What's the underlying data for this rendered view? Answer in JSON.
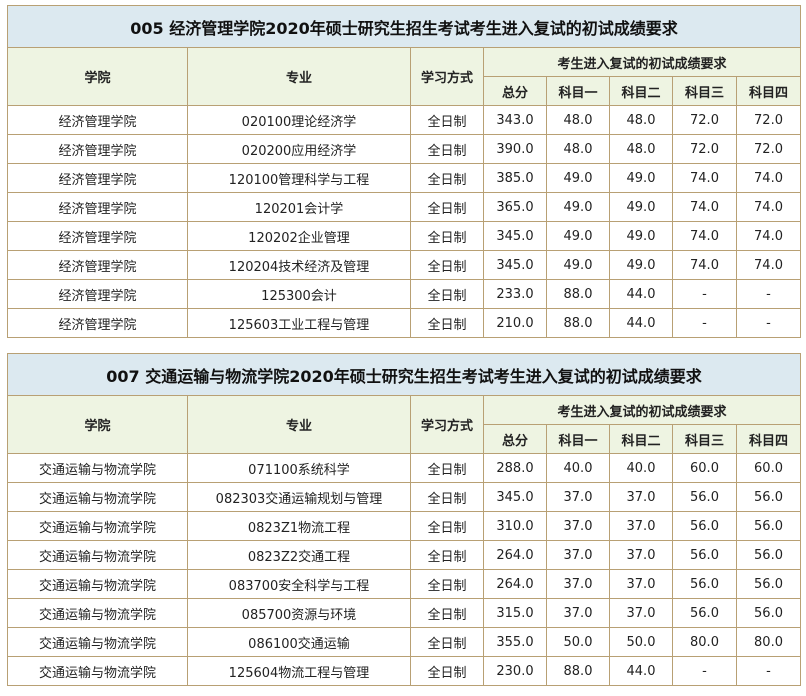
{
  "headers": {
    "college": "学院",
    "major": "专业",
    "mode": "学习方式",
    "req": "考生进入复试的初试成绩要求",
    "total": "总分",
    "s1": "科目一",
    "s2": "科目二",
    "s3": "科目三",
    "s4": "科目四"
  },
  "tables": [
    {
      "title": "005 经济管理学院2020年硕士研究生招生考试考生进入复试的初试成绩要求",
      "rows": [
        [
          "经济管理学院",
          "020100理论经济学",
          "全日制",
          "343.0",
          "48.0",
          "48.0",
          "72.0",
          "72.0"
        ],
        [
          "经济管理学院",
          "020200应用经济学",
          "全日制",
          "390.0",
          "48.0",
          "48.0",
          "72.0",
          "72.0"
        ],
        [
          "经济管理学院",
          "120100管理科学与工程",
          "全日制",
          "385.0",
          "49.0",
          "49.0",
          "74.0",
          "74.0"
        ],
        [
          "经济管理学院",
          "120201会计学",
          "全日制",
          "365.0",
          "49.0",
          "49.0",
          "74.0",
          "74.0"
        ],
        [
          "经济管理学院",
          "120202企业管理",
          "全日制",
          "345.0",
          "49.0",
          "49.0",
          "74.0",
          "74.0"
        ],
        [
          "经济管理学院",
          "120204技术经济及管理",
          "全日制",
          "345.0",
          "49.0",
          "49.0",
          "74.0",
          "74.0"
        ],
        [
          "经济管理学院",
          "125300会计",
          "全日制",
          "233.0",
          "88.0",
          "44.0",
          "-",
          "-"
        ],
        [
          "经济管理学院",
          "125603工业工程与管理",
          "全日制",
          "210.0",
          "88.0",
          "44.0",
          "-",
          "-"
        ]
      ]
    },
    {
      "title": "007 交通运输与物流学院2020年硕士研究生招生考试考生进入复试的初试成绩要求",
      "rows": [
        [
          "交通运输与物流学院",
          "071100系统科学",
          "全日制",
          "288.0",
          "40.0",
          "40.0",
          "60.0",
          "60.0"
        ],
        [
          "交通运输与物流学院",
          "082303交通运输规划与管理",
          "全日制",
          "345.0",
          "37.0",
          "37.0",
          "56.0",
          "56.0"
        ],
        [
          "交通运输与物流学院",
          "0823Z1物流工程",
          "全日制",
          "310.0",
          "37.0",
          "37.0",
          "56.0",
          "56.0"
        ],
        [
          "交通运输与物流学院",
          "0823Z2交通工程",
          "全日制",
          "264.0",
          "37.0",
          "37.0",
          "56.0",
          "56.0"
        ],
        [
          "交通运输与物流学院",
          "083700安全科学与工程",
          "全日制",
          "264.0",
          "37.0",
          "37.0",
          "56.0",
          "56.0"
        ],
        [
          "交通运输与物流学院",
          "085700资源与环境",
          "全日制",
          "315.0",
          "37.0",
          "37.0",
          "56.0",
          "56.0"
        ],
        [
          "交通运输与物流学院",
          "086100交通运输",
          "全日制",
          "355.0",
          "50.0",
          "50.0",
          "80.0",
          "80.0"
        ],
        [
          "交通运输与物流学院",
          "125604物流工程与管理",
          "全日制",
          "230.0",
          "88.0",
          "44.0",
          "-",
          "-"
        ]
      ]
    }
  ],
  "colors": {
    "title_bg": "#dce9f0",
    "header_bg": "#eef4e2",
    "border": "#b8a074"
  }
}
